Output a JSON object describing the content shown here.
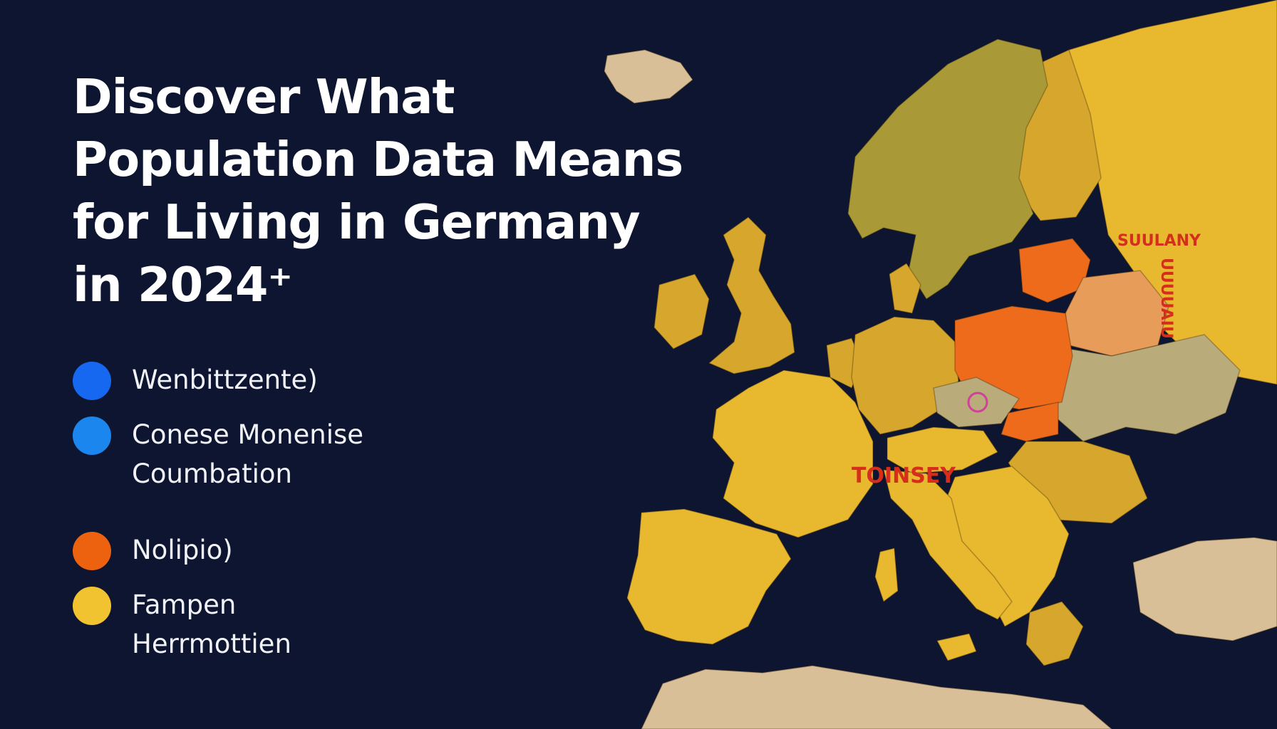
{
  "header": {
    "title_lines": [
      "Discover What",
      "Population Data Means",
      "for Living in Germany",
      "in 2024⁺"
    ]
  },
  "legend": {
    "items": [
      {
        "lines": [
          "Wenbittzente)"
        ],
        "color": "#1668f0"
      },
      {
        "lines": [
          "Conese Monenise",
          "Coumbation"
        ],
        "color": "#1b86ee"
      },
      {
        "lines": [
          "Nolipio)"
        ],
        "color": "#ec620f"
      },
      {
        "lines": [
          "Fampen",
          "Herrmottien"
        ],
        "color": "#f2c331"
      }
    ]
  },
  "map": {
    "region_labels": [
      "TOINSEY",
      "SUULANY",
      "UUUUAIU"
    ],
    "colors": {
      "background": "#0d1530",
      "yellow": "#e8b82f",
      "gold": "#d6a72c",
      "olive": "#a99a37",
      "orange": "#ee6b1c",
      "peach": "#e79c59",
      "khaki": "#b9ab7a",
      "sand": "#d9bf98",
      "label_red": "#d62e1c"
    }
  }
}
